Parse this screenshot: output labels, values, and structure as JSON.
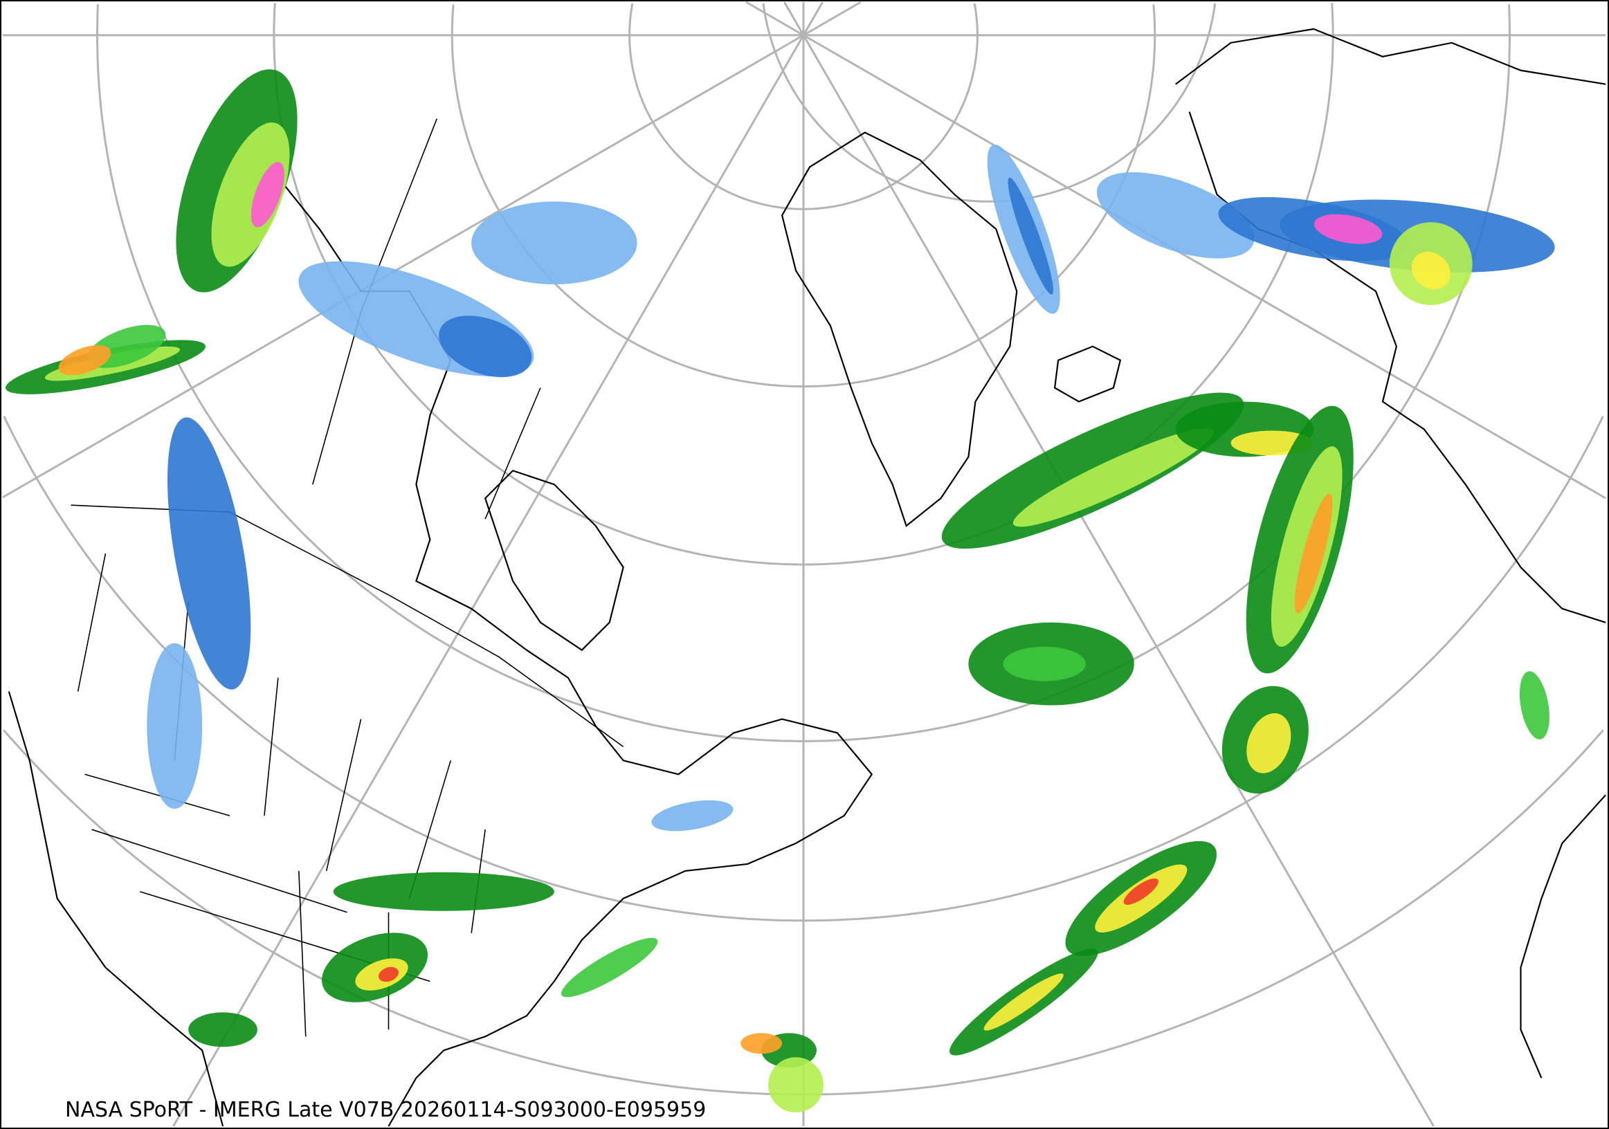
{
  "caption": "NASA SPoRT - IMERG Late V07B 20260114-S093000-E095959",
  "map": {
    "projection": "north-polar-stereographic",
    "graticule_color": "#b4b4b4",
    "coastline_color": "#000000",
    "precip_colors": [
      "#c8e1ff",
      "#78b4f0",
      "#2d78d2",
      "#0a8c14",
      "#3cc83c",
      "#b4f050",
      "#fff03c",
      "#ffa028",
      "#f03c28",
      "#ff5ad2"
    ]
  }
}
